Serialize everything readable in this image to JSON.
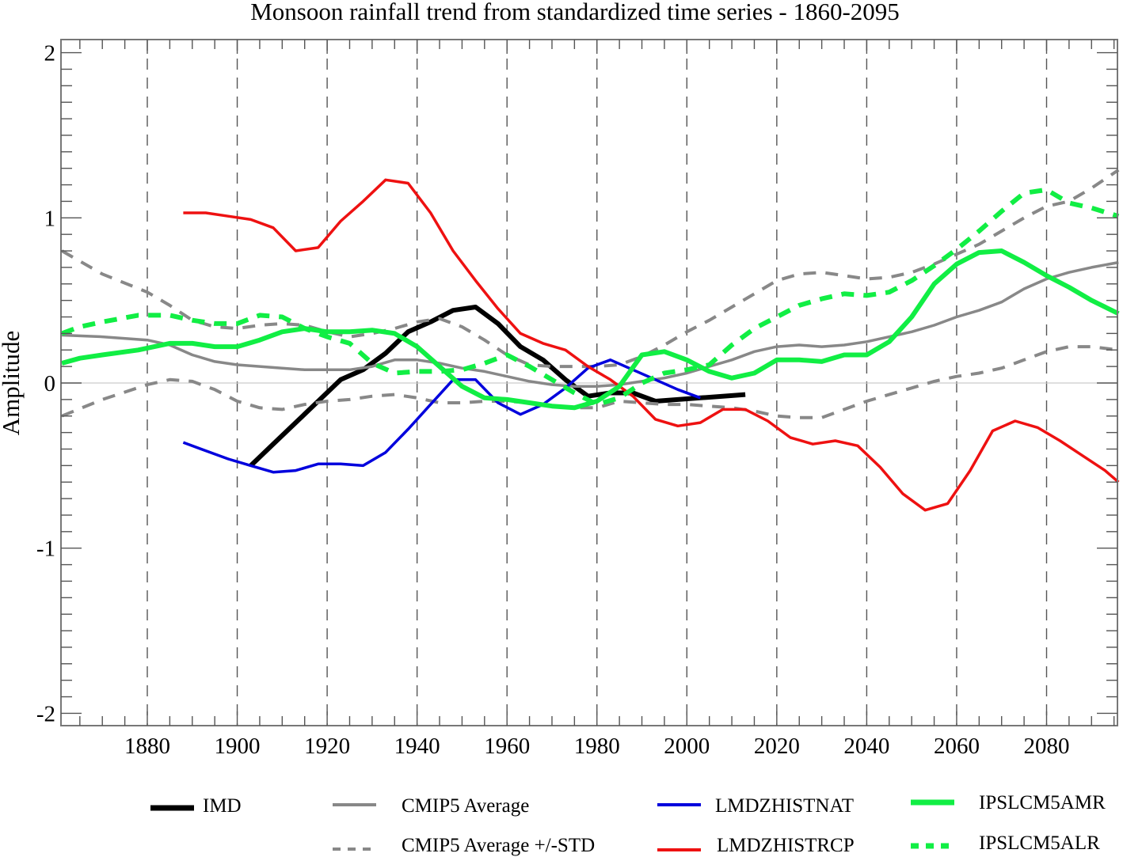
{
  "chart_data": {
    "type": "line",
    "title": "Monsoon rainfall trend from standardized time series - 1860-2095",
    "xlabel": "",
    "ylabel": "Amplitude",
    "xlim": [
      1861,
      2096
    ],
    "ylim": [
      -2.07,
      2.07
    ],
    "x_ticks": [
      1880,
      1900,
      1920,
      1940,
      1960,
      1980,
      2000,
      2020,
      2040,
      2060,
      2080
    ],
    "x_tick_labels": [
      "1880",
      "1900",
      "1920",
      "1940",
      "1960",
      "1980",
      "2000",
      "2020",
      "2040",
      "2060",
      "2080"
    ],
    "y_ticks": [
      -2,
      -1,
      0,
      1,
      2
    ],
    "y_tick_labels": [
      "-2",
      "-1",
      "0",
      "1",
      "2"
    ],
    "grid": "vertical dashed at x ticks; horizontal line at 0",
    "legend_position": "bottom",
    "series": [
      {
        "name": "IMD",
        "color": "#000000",
        "style": "solid-thick",
        "x": [
          1903,
          1908,
          1913,
          1918,
          1923,
          1928,
          1933,
          1938,
          1943,
          1948,
          1953,
          1958,
          1963,
          1968,
          1973,
          1978,
          1983,
          1988,
          1993,
          1998,
          2003,
          2008,
          2013
        ],
        "y": [
          -0.5,
          -0.37,
          -0.24,
          -0.11,
          0.02,
          0.08,
          0.18,
          0.31,
          0.37,
          0.44,
          0.46,
          0.36,
          0.22,
          0.14,
          0.02,
          -0.08,
          -0.06,
          -0.06,
          -0.11,
          -0.1,
          -0.09,
          -0.08,
          -0.07
        ]
      },
      {
        "name": "CMIP5 Average",
        "color": "#888888",
        "style": "solid",
        "x": [
          1861,
          1870,
          1880,
          1885,
          1890,
          1895,
          1900,
          1905,
          1910,
          1915,
          1920,
          1925,
          1930,
          1935,
          1940,
          1945,
          1950,
          1955,
          1960,
          1965,
          1970,
          1975,
          1980,
          1985,
          1990,
          1995,
          2000,
          2005,
          2010,
          2015,
          2020,
          2025,
          2030,
          2035,
          2040,
          2045,
          2050,
          2055,
          2060,
          2065,
          2070,
          2075,
          2080,
          2085,
          2090,
          2096
        ],
        "y": [
          0.29,
          0.28,
          0.26,
          0.23,
          0.17,
          0.13,
          0.11,
          0.1,
          0.09,
          0.08,
          0.08,
          0.08,
          0.1,
          0.14,
          0.14,
          0.12,
          0.09,
          0.07,
          0.04,
          0.01,
          -0.01,
          -0.02,
          -0.02,
          -0.01,
          0.01,
          0.03,
          0.06,
          0.1,
          0.14,
          0.19,
          0.22,
          0.23,
          0.22,
          0.23,
          0.25,
          0.28,
          0.31,
          0.35,
          0.4,
          0.44,
          0.49,
          0.57,
          0.63,
          0.67,
          0.7,
          0.73
        ]
      },
      {
        "name": "CMIP5 Average +STD",
        "legend": "CMIP5 Average +/-STD",
        "color": "#888888",
        "style": "dashed",
        "x": [
          1861,
          1870,
          1880,
          1885,
          1890,
          1895,
          1900,
          1905,
          1910,
          1915,
          1920,
          1925,
          1930,
          1935,
          1940,
          1945,
          1950,
          1955,
          1960,
          1965,
          1970,
          1975,
          1980,
          1985,
          1990,
          1995,
          2000,
          2005,
          2010,
          2015,
          2020,
          2025,
          2030,
          2035,
          2040,
          2045,
          2050,
          2055,
          2060,
          2065,
          2070,
          2075,
          2080,
          2085,
          2090,
          2096
        ],
        "y": [
          0.8,
          0.66,
          0.55,
          0.47,
          0.38,
          0.34,
          0.33,
          0.35,
          0.36,
          0.35,
          0.31,
          0.28,
          0.3,
          0.33,
          0.37,
          0.39,
          0.34,
          0.26,
          0.17,
          0.11,
          0.1,
          0.1,
          0.1,
          0.11,
          0.16,
          0.23,
          0.31,
          0.38,
          0.46,
          0.54,
          0.62,
          0.66,
          0.67,
          0.65,
          0.63,
          0.64,
          0.67,
          0.72,
          0.78,
          0.84,
          0.92,
          1.0,
          1.07,
          1.1,
          1.18,
          1.29
        ]
      },
      {
        "name": "CMIP5 Average -STD",
        "legend": "CMIP5 Average +/-STD",
        "color": "#888888",
        "style": "dashed",
        "x": [
          1861,
          1870,
          1880,
          1885,
          1890,
          1895,
          1900,
          1905,
          1910,
          1915,
          1920,
          1925,
          1930,
          1935,
          1940,
          1945,
          1950,
          1955,
          1960,
          1965,
          1970,
          1975,
          1980,
          1985,
          1990,
          1995,
          2000,
          2005,
          2010,
          2015,
          2020,
          2025,
          2030,
          2035,
          2040,
          2045,
          2050,
          2055,
          2060,
          2065,
          2070,
          2075,
          2080,
          2085,
          2090,
          2096
        ],
        "y": [
          -0.2,
          -0.1,
          -0.01,
          0.02,
          0.01,
          -0.04,
          -0.11,
          -0.15,
          -0.16,
          -0.13,
          -0.11,
          -0.1,
          -0.08,
          -0.07,
          -0.09,
          -0.12,
          -0.12,
          -0.11,
          -0.11,
          -0.12,
          -0.14,
          -0.15,
          -0.15,
          -0.11,
          -0.12,
          -0.13,
          -0.13,
          -0.14,
          -0.15,
          -0.17,
          -0.2,
          -0.21,
          -0.21,
          -0.16,
          -0.11,
          -0.07,
          -0.03,
          0.01,
          0.04,
          0.06,
          0.09,
          0.14,
          0.19,
          0.22,
          0.22,
          0.2
        ]
      },
      {
        "name": "LMDZHISTNAT",
        "color": "#0000dd",
        "style": "solid",
        "x": [
          1888,
          1893,
          1898,
          1903,
          1908,
          1913,
          1918,
          1923,
          1928,
          1933,
          1938,
          1943,
          1948,
          1953,
          1958,
          1963,
          1968,
          1973,
          1978,
          1983,
          1988,
          1993,
          1998,
          2003
        ],
        "y": [
          -0.36,
          -0.41,
          -0.46,
          -0.5,
          -0.54,
          -0.53,
          -0.49,
          -0.49,
          -0.5,
          -0.42,
          -0.28,
          -0.13,
          0.02,
          0.02,
          -0.12,
          -0.19,
          -0.13,
          -0.03,
          0.09,
          0.14,
          0.08,
          0.02,
          -0.04,
          -0.09
        ]
      },
      {
        "name": "LMDZHISTRCP",
        "color": "#ee1111",
        "style": "solid",
        "x": [
          1888,
          1893,
          1898,
          1903,
          1908,
          1913,
          1918,
          1923,
          1928,
          1933,
          1938,
          1943,
          1948,
          1953,
          1958,
          1963,
          1968,
          1973,
          1978,
          1983,
          1988,
          1993,
          1998,
          2003,
          2008,
          2013,
          2018,
          2023,
          2028,
          2033,
          2038,
          2043,
          2048,
          2053,
          2058,
          2063,
          2068,
          2073,
          2078,
          2083,
          2088,
          2093,
          2096
        ],
        "y": [
          1.03,
          1.03,
          1.01,
          0.99,
          0.94,
          0.8,
          0.82,
          0.98,
          1.1,
          1.23,
          1.21,
          1.03,
          0.8,
          0.62,
          0.45,
          0.3,
          0.24,
          0.2,
          0.1,
          0.02,
          -0.08,
          -0.22,
          -0.26,
          -0.24,
          -0.16,
          -0.16,
          -0.23,
          -0.33,
          -0.37,
          -0.35,
          -0.38,
          -0.51,
          -0.67,
          -0.77,
          -0.73,
          -0.53,
          -0.29,
          -0.23,
          -0.27,
          -0.35,
          -0.44,
          -0.53,
          -0.6
        ]
      },
      {
        "name": "IPSLCM5AMR",
        "color": "#11ee44",
        "style": "solid-thick",
        "x": [
          1861,
          1865,
          1870,
          1878,
          1885,
          1890,
          1895,
          1900,
          1905,
          1910,
          1915,
          1920,
          1925,
          1930,
          1935,
          1940,
          1945,
          1950,
          1955,
          1960,
          1965,
          1970,
          1975,
          1980,
          1985,
          1990,
          1995,
          2000,
          2005,
          2010,
          2015,
          2020,
          2025,
          2030,
          2035,
          2040,
          2045,
          2050,
          2055,
          2060,
          2065,
          2070,
          2075,
          2080,
          2085,
          2090,
          2096
        ],
        "y": [
          0.12,
          0.15,
          0.17,
          0.2,
          0.24,
          0.24,
          0.22,
          0.22,
          0.26,
          0.31,
          0.33,
          0.31,
          0.31,
          0.32,
          0.3,
          0.22,
          0.1,
          -0.02,
          -0.09,
          -0.1,
          -0.12,
          -0.14,
          -0.15,
          -0.11,
          -0.02,
          0.17,
          0.19,
          0.14,
          0.07,
          0.03,
          0.06,
          0.14,
          0.14,
          0.13,
          0.17,
          0.17,
          0.25,
          0.4,
          0.6,
          0.72,
          0.79,
          0.8,
          0.73,
          0.65,
          0.58,
          0.5,
          0.42
        ]
      },
      {
        "name": "IPSLCM5ALR",
        "color": "#11ee44",
        "style": "dashed-thick",
        "x": [
          1861,
          1865,
          1870,
          1878,
          1885,
          1890,
          1895,
          1900,
          1905,
          1910,
          1915,
          1920,
          1925,
          1930,
          1935,
          1940,
          1945,
          1950,
          1955,
          1960,
          1965,
          1970,
          1975,
          1980,
          1985,
          1990,
          1995,
          2000,
          2005,
          2010,
          2015,
          2020,
          2025,
          2030,
          2035,
          2040,
          2045,
          2050,
          2055,
          2060,
          2065,
          2070,
          2075,
          2080,
          2085,
          2090,
          2096
        ],
        "y": [
          0.3,
          0.34,
          0.37,
          0.41,
          0.41,
          0.38,
          0.36,
          0.36,
          0.41,
          0.4,
          0.33,
          0.28,
          0.24,
          0.12,
          0.06,
          0.07,
          0.07,
          0.08,
          0.12,
          0.17,
          0.1,
          0.02,
          -0.06,
          -0.13,
          -0.09,
          0.0,
          0.06,
          0.08,
          0.11,
          0.23,
          0.33,
          0.4,
          0.47,
          0.51,
          0.54,
          0.53,
          0.55,
          0.62,
          0.71,
          0.81,
          0.92,
          1.04,
          1.15,
          1.17,
          1.09,
          1.06,
          1.01
        ]
      }
    ],
    "legend": [
      {
        "label": "IMD",
        "color": "#000000",
        "style": "solid-thick"
      },
      {
        "label": "CMIP5 Average",
        "color": "#888888",
        "style": "solid"
      },
      {
        "label": "LMDZHISTNAT",
        "color": "#0000dd",
        "style": "solid"
      },
      {
        "label": "IPSLCM5AMR",
        "color": "#11ee44",
        "style": "solid-thick"
      },
      {
        "label": "CMIP5 Average +/-STD",
        "color": "#888888",
        "style": "dashed"
      },
      {
        "label": "LMDZHISTRCP",
        "color": "#ee1111",
        "style": "solid"
      },
      {
        "label": "IPSLCM5ALR",
        "color": "#11ee44",
        "style": "dashed-thick"
      }
    ]
  }
}
